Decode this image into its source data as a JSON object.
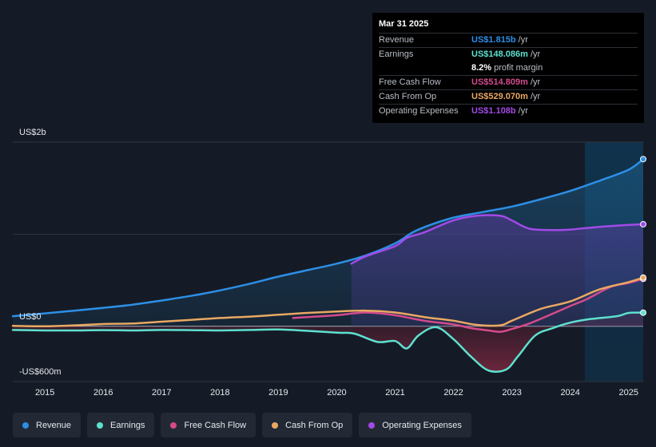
{
  "chart_data": {
    "type": "line",
    "title": "",
    "ylim": [
      -600,
      2000
    ],
    "y_axis_labels": {
      "top": "US$2b",
      "zero": "US$0",
      "bottom": "-US$600m"
    },
    "x_ticks": [
      "2015",
      "2016",
      "2017",
      "2018",
      "2019",
      "2020",
      "2021",
      "2022",
      "2023",
      "2024",
      "2025"
    ],
    "x_tick_values": [
      2015,
      2016,
      2017,
      2018,
      2019,
      2020,
      2021,
      2022,
      2023,
      2024,
      2025
    ],
    "xlim": [
      2014.45,
      2025.25
    ],
    "highlight_start": 2024.25,
    "series": [
      {
        "name": "Revenue",
        "color": "#2d8fe6",
        "x": [
          2014.45,
          2015.0,
          2015.5,
          2016.0,
          2016.5,
          2017.0,
          2017.5,
          2018.0,
          2018.5,
          2019.0,
          2019.5,
          2020.0,
          2020.5,
          2021.0,
          2021.3,
          2021.6,
          2022.0,
          2022.5,
          2023.0,
          2023.5,
          2024.0,
          2024.5,
          2025.0,
          2025.25
        ],
        "y": [
          110,
          140,
          170,
          200,
          235,
          280,
          330,
          390,
          460,
          540,
          610,
          680,
          770,
          900,
          1020,
          1100,
          1180,
          1240,
          1300,
          1380,
          1470,
          1580,
          1700,
          1815
        ]
      },
      {
        "name": "Earnings",
        "color": "#5ee0cf",
        "x": [
          2014.45,
          2015.0,
          2015.5,
          2016.0,
          2016.5,
          2017.0,
          2017.5,
          2018.0,
          2018.5,
          2019.0,
          2019.5,
          2020.0,
          2020.3,
          2020.7,
          2021.0,
          2021.2,
          2021.4,
          2021.7,
          2022.0,
          2022.3,
          2022.6,
          2022.9,
          2023.1,
          2023.4,
          2023.7,
          2024.0,
          2024.3,
          2024.8,
          2025.0,
          2025.25
        ],
        "y": [
          -40,
          -45,
          -45,
          -42,
          -45,
          -40,
          -42,
          -45,
          -40,
          -35,
          -50,
          -70,
          -80,
          -170,
          -160,
          -240,
          -100,
          -10,
          -140,
          -330,
          -480,
          -470,
          -330,
          -100,
          -20,
          40,
          75,
          110,
          145,
          148
        ]
      },
      {
        "name": "Free Cash Flow",
        "color": "#d44b8c",
        "x": [
          2019.25,
          2019.5,
          2020.0,
          2020.5,
          2021.0,
          2021.5,
          2022.0,
          2022.3,
          2022.6,
          2022.8,
          2023.0,
          2023.3,
          2023.6,
          2024.0,
          2024.3,
          2024.7,
          2025.0,
          2025.25
        ],
        "y": [
          90,
          100,
          120,
          150,
          120,
          60,
          20,
          -20,
          -45,
          -60,
          -30,
          30,
          110,
          220,
          300,
          430,
          470,
          515
        ]
      },
      {
        "name": "Cash From Op",
        "color": "#e9a862",
        "x": [
          2014.45,
          2015.0,
          2015.5,
          2016.0,
          2016.5,
          2017.0,
          2017.5,
          2018.0,
          2018.5,
          2019.0,
          2019.5,
          2020.0,
          2020.5,
          2021.0,
          2021.5,
          2022.0,
          2022.4,
          2022.8,
          2023.0,
          2023.5,
          2024.0,
          2024.5,
          2025.0,
          2025.25
        ],
        "y": [
          5,
          0,
          10,
          25,
          30,
          50,
          70,
          90,
          105,
          125,
          145,
          160,
          170,
          150,
          100,
          60,
          15,
          10,
          60,
          190,
          270,
          400,
          480,
          529
        ]
      },
      {
        "name": "Operating Expenses",
        "color": "#a24ae8",
        "x": [
          2020.25,
          2020.5,
          2021.0,
          2021.2,
          2021.5,
          2022.0,
          2022.4,
          2022.8,
          2023.0,
          2023.3,
          2023.7,
          2024.0,
          2024.5,
          2025.0,
          2025.25
        ],
        "y": [
          680,
          760,
          870,
          960,
          1020,
          1150,
          1200,
          1200,
          1150,
          1060,
          1045,
          1050,
          1080,
          1100,
          1108
        ]
      }
    ]
  },
  "tooltip": {
    "date": "Mar 31 2025",
    "rows": [
      {
        "label": "Revenue",
        "value": "US$1.815b",
        "unit": "/yr",
        "color": "#2d8fe6"
      },
      {
        "label": "Earnings",
        "value": "US$148.086m",
        "unit": "/yr",
        "color": "#5ee0cf"
      },
      {
        "label": "",
        "value": "8.2%",
        "unit": "profit margin",
        "color": "#ffffff"
      },
      {
        "label": "Free Cash Flow",
        "value": "US$514.809m",
        "unit": "/yr",
        "color": "#d44b8c"
      },
      {
        "label": "Cash From Op",
        "value": "US$529.070m",
        "unit": "/yr",
        "color": "#e9a862"
      },
      {
        "label": "Operating Expenses",
        "value": "US$1.108b",
        "unit": "/yr",
        "color": "#a24ae8"
      }
    ]
  },
  "legend": [
    {
      "label": "Revenue",
      "color": "#2d8fe6"
    },
    {
      "label": "Earnings",
      "color": "#5ee0cf"
    },
    {
      "label": "Free Cash Flow",
      "color": "#d44b8c"
    },
    {
      "label": "Cash From Op",
      "color": "#e9a862"
    },
    {
      "label": "Operating Expenses",
      "color": "#a24ae8"
    }
  ]
}
